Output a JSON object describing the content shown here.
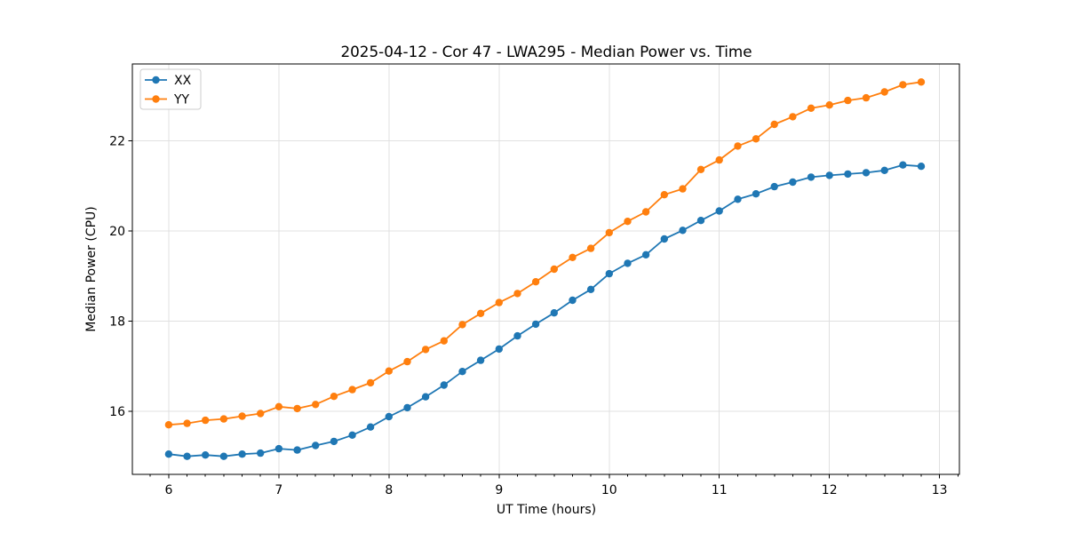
{
  "chart_data": {
    "type": "line",
    "title": "2025-04-12 - Cor 47 - LWA295 - Median Power vs. Time",
    "xlabel": "UT Time (hours)",
    "ylabel": "Median Power (CPU)",
    "xlim": [
      5.67,
      13.18
    ],
    "ylim": [
      14.6,
      23.7
    ],
    "xticks": [
      6,
      7,
      8,
      9,
      10,
      11,
      12,
      13
    ],
    "yticks": [
      16,
      18,
      20,
      22
    ],
    "x_minor_tick_step": 0.1667,
    "grid": true,
    "grid_color": "#e0e0e0",
    "spine_color": "#000000",
    "background_color": "#ffffff",
    "legend_position": "upper left",
    "x": [
      6.0,
      6.167,
      6.333,
      6.5,
      6.667,
      6.833,
      7.0,
      7.167,
      7.333,
      7.5,
      7.667,
      7.833,
      8.0,
      8.167,
      8.333,
      8.5,
      8.667,
      8.833,
      9.0,
      9.167,
      9.333,
      9.5,
      9.667,
      9.833,
      10.0,
      10.167,
      10.333,
      10.5,
      10.667,
      10.833,
      11.0,
      11.167,
      11.333,
      11.5,
      11.667,
      11.833,
      12.0,
      12.167,
      12.333,
      12.5,
      12.667,
      12.833
    ],
    "series": [
      {
        "name": "XX",
        "color": "#1f77b4",
        "marker": "circle",
        "values": [
          15.05,
          15.0,
          15.03,
          15.0,
          15.05,
          15.07,
          15.17,
          15.14,
          15.24,
          15.33,
          15.47,
          15.65,
          15.88,
          16.08,
          16.32,
          16.58,
          16.88,
          17.13,
          17.38,
          17.67,
          17.93,
          18.18,
          18.46,
          18.7,
          19.05,
          19.28,
          19.47,
          19.82,
          20.01,
          20.23,
          20.44,
          20.7,
          20.82,
          20.98,
          21.08,
          21.19,
          21.23,
          21.26,
          21.29,
          21.34,
          21.46,
          21.43
        ]
      },
      {
        "name": "YY",
        "color": "#ff7f0e",
        "marker": "circle",
        "values": [
          15.7,
          15.73,
          15.8,
          15.83,
          15.89,
          15.95,
          16.1,
          16.06,
          16.15,
          16.33,
          16.48,
          16.63,
          16.89,
          17.1,
          17.37,
          17.56,
          17.92,
          18.17,
          18.41,
          18.61,
          18.87,
          19.15,
          19.41,
          19.61,
          19.96,
          20.21,
          20.42,
          20.8,
          20.93,
          21.36,
          21.57,
          21.88,
          22.04,
          22.36,
          22.53,
          22.72,
          22.79,
          22.89,
          22.95,
          23.08,
          23.24,
          23.3
        ]
      }
    ]
  }
}
